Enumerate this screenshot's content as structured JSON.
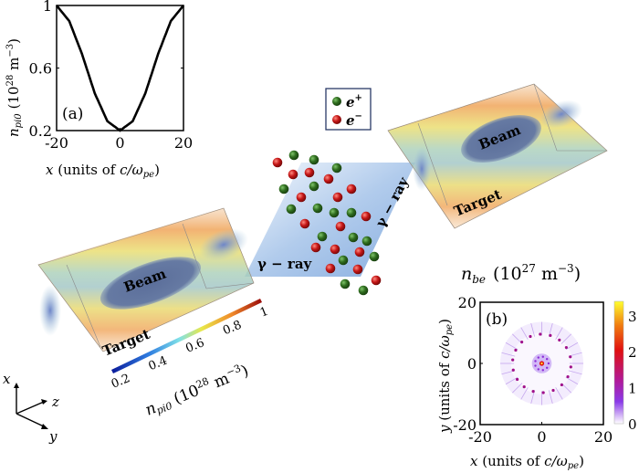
{
  "panel_a": {
    "label": "(a)",
    "ylabel_var": "n",
    "ylabel_sub": "pi0",
    "ylabel_units_open": "(10",
    "ylabel_exp": "28",
    "ylabel_units_mid": " m",
    "ylabel_units_exp": "−3",
    "ylabel_units_close": ")",
    "xlabel_var": "x",
    "xlabel_text": " (units of ",
    "xlabel_c": "c/ω",
    "xlabel_sub": "pe",
    "xlabel_close": ")",
    "yticks": [
      "0.2",
      "0.6",
      "1"
    ],
    "xticks": [
      "-20",
      "0",
      "20"
    ]
  },
  "chart_data": {
    "type": "line",
    "title": "(a)",
    "xlabel": "x (units of c/ω_pe)",
    "ylabel": "n_pi0 (10^28 m^-3)",
    "xlim": [
      -20,
      20
    ],
    "ylim": [
      0.2,
      1
    ],
    "x": [
      -20,
      -16,
      -12,
      -8,
      -4,
      0,
      4,
      8,
      12,
      16,
      20
    ],
    "values": [
      1.0,
      0.9,
      0.69,
      0.44,
      0.26,
      0.2,
      0.26,
      0.44,
      0.69,
      0.9,
      1.0
    ]
  },
  "legend": {
    "items": [
      {
        "label": "e",
        "sup": "+",
        "color": "#2e6b1e"
      },
      {
        "label": "e",
        "sup": "−",
        "color": "#c01818"
      }
    ]
  },
  "labels": {
    "gamma_ray_left": "γ − ray",
    "gamma_ray_right": "γ − ray",
    "beam_left": "Beam",
    "beam_right": "Beam",
    "target_left": "Target",
    "target_right": "Target"
  },
  "colorbar_3d": {
    "ticks": [
      "0.2",
      "0.4",
      "0.6",
      "0.8",
      "1"
    ],
    "label_var": "n",
    "label_sub": "pi0",
    "label_units": "(10",
    "label_exp": "28",
    "label_m": " m",
    "label_mexp": "−3",
    "label_close": ")"
  },
  "axes_triad": {
    "x": "x",
    "y": "y",
    "z": "z"
  },
  "panel_b": {
    "title_var": "n",
    "title_sub": "be",
    "title_units": "(10",
    "title_exp": "27",
    "title_m": " m",
    "title_mexp": "−3",
    "title_close": ")",
    "label": "(b)",
    "xticks": [
      "-20",
      "0",
      "20"
    ],
    "yticks": [
      "-20",
      "0",
      "20"
    ],
    "cbar_ticks": [
      "0",
      "1",
      "2",
      "3"
    ],
    "xlabel_var": "x",
    "xlabel_text": " (units of ",
    "xlabel_c": "c/ω",
    "xlabel_sub": "pe",
    "xlabel_close": ")",
    "ylabel_var": "y",
    "ylabel_text": " (units of ",
    "ylabel_c": "c/ω",
    "ylabel_sub": "pe",
    "ylabel_close": ")"
  }
}
